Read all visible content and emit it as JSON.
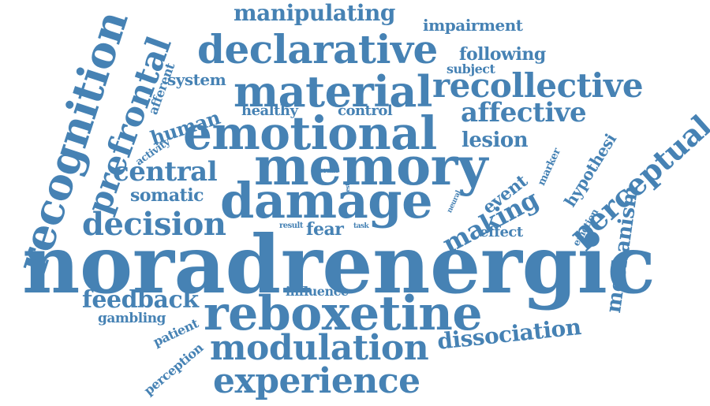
{
  "word_cloud": {
    "color": "#4682b4",
    "words": {
      "noradrenergic": "noradrenergic",
      "reboxetine": "reboxetine",
      "memory": "memory",
      "damage": "damage",
      "emotional": "emotional",
      "material": "material",
      "declarative": "declarative",
      "recollective": "recollective",
      "recognition": "recognition",
      "prefrontal": "prefrontal",
      "modulation": "modulation",
      "experience": "experience",
      "perceptual": "perceptual",
      "decision": "decision",
      "making": "making",
      "manipulating": "manipulating",
      "affective": "affective",
      "dissociation": "dissociation",
      "central": "central",
      "feedback": "feedback",
      "mechanism": "mechanism",
      "impairment": "impairment",
      "following": "following",
      "subject": "subject",
      "system": "system",
      "human": "human",
      "healthy": "healthy",
      "control": "control",
      "lesion": "lesion",
      "afferent": "afferent",
      "activity": "activity",
      "somatic": "somatic",
      "event": "event",
      "hypothesi": "hypothesi",
      "marker": "marker",
      "fear": "fear",
      "effect": "effect",
      "emotion": "emotion",
      "influence": "influence",
      "gambling": "gambling",
      "patient": "patient",
      "perception": "perception",
      "brain": "brain",
      "test": "test",
      "neural": "neural",
      "result": "result",
      "task": "task"
    }
  }
}
